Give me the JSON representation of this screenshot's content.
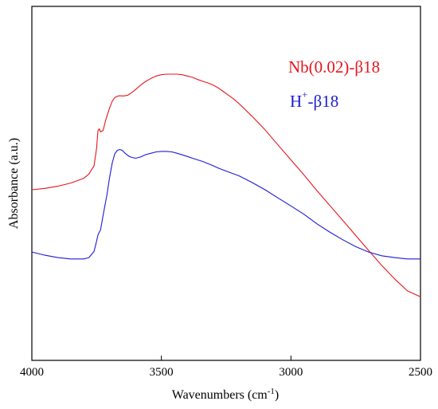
{
  "chart_data": {
    "type": "line",
    "xlabel": "Wavenumbers (cm",
    "xlabel_sup": "-1",
    "xlabel_suffix": ")",
    "ylabel": "Absorbance (a.u.)",
    "xlim": [
      4000,
      2500
    ],
    "ylim": [
      0,
      1
    ],
    "x_reversed": true,
    "y_ticks_shown": false,
    "x_ticks": [
      4000,
      3500,
      3000,
      2500
    ],
    "x_tick_labels": [
      "4000",
      "3500",
      "3000",
      "2500"
    ],
    "grid": false,
    "legend_position": "top-right",
    "series": [
      {
        "name": "Nb(0.02)-β18",
        "legend_parts": [
          "Nb(0.02)-β18"
        ],
        "color": "#e8141c",
        "x": [
          4000,
          3950,
          3900,
          3850,
          3800,
          3780,
          3760,
          3750,
          3745,
          3740,
          3735,
          3725,
          3715,
          3700,
          3690,
          3680,
          3670,
          3660,
          3650,
          3640,
          3630,
          3620,
          3600,
          3580,
          3560,
          3540,
          3520,
          3500,
          3480,
          3460,
          3440,
          3420,
          3400,
          3380,
          3360,
          3340,
          3320,
          3300,
          3280,
          3260,
          3240,
          3220,
          3200,
          3150,
          3100,
          3050,
          3000,
          2950,
          2900,
          2850,
          2800,
          2750,
          2700,
          2650,
          2600,
          2550,
          2500
        ],
        "values": [
          0.566,
          0.571,
          0.579,
          0.591,
          0.609,
          0.625,
          0.656,
          0.722,
          0.787,
          0.795,
          0.783,
          0.789,
          0.827,
          0.873,
          0.898,
          0.912,
          0.917,
          0.919,
          0.918,
          0.919,
          0.921,
          0.927,
          0.942,
          0.959,
          0.973,
          0.984,
          0.993,
          0.998,
          1.0,
          1.0,
          1.0,
          0.998,
          0.993,
          0.988,
          0.98,
          0.973,
          0.967,
          0.959,
          0.948,
          0.934,
          0.92,
          0.906,
          0.889,
          0.842,
          0.791,
          0.734,
          0.678,
          0.622,
          0.563,
          0.507,
          0.451,
          0.394,
          0.338,
          0.282,
          0.231,
          0.186,
          0.164
        ]
      },
      {
        "name": "H⁺-β18",
        "legend_parts": [
          "H",
          "+",
          "-β18"
        ],
        "color": "#1b1bd6",
        "x": [
          4000,
          3950,
          3900,
          3850,
          3800,
          3780,
          3760,
          3750,
          3745,
          3740,
          3735,
          3725,
          3710,
          3700,
          3690,
          3680,
          3670,
          3660,
          3650,
          3640,
          3630,
          3620,
          3600,
          3580,
          3560,
          3540,
          3520,
          3500,
          3480,
          3460,
          3440,
          3420,
          3400,
          3380,
          3360,
          3340,
          3320,
          3300,
          3280,
          3250,
          3200,
          3150,
          3100,
          3050,
          3000,
          2950,
          2900,
          2850,
          2800,
          2750,
          2700,
          2650,
          2600,
          2550,
          2500
        ],
        "values": [
          0.332,
          0.32,
          0.311,
          0.306,
          0.306,
          0.311,
          0.334,
          0.373,
          0.396,
          0.406,
          0.414,
          0.47,
          0.547,
          0.612,
          0.666,
          0.701,
          0.714,
          0.717,
          0.713,
          0.703,
          0.695,
          0.689,
          0.684,
          0.689,
          0.698,
          0.703,
          0.708,
          0.71,
          0.71,
          0.708,
          0.703,
          0.697,
          0.691,
          0.684,
          0.678,
          0.672,
          0.664,
          0.656,
          0.647,
          0.636,
          0.618,
          0.593,
          0.566,
          0.535,
          0.505,
          0.474,
          0.438,
          0.407,
          0.378,
          0.352,
          0.332,
          0.318,
          0.311,
          0.306,
          0.306
        ]
      }
    ]
  }
}
